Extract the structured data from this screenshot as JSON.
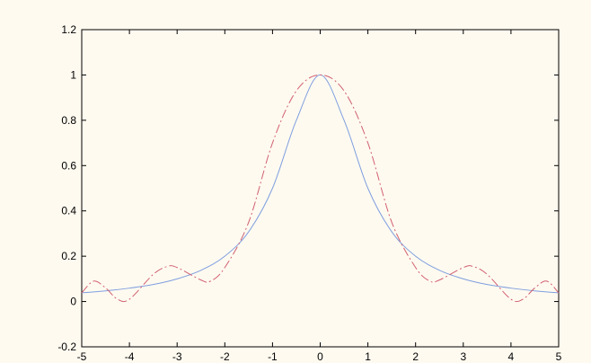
{
  "chart_data": {
    "type": "line",
    "title": "",
    "xlabel": "",
    "ylabel": "",
    "xlim": [
      -5,
      5
    ],
    "ylim": [
      -0.2,
      1.2
    ],
    "grid": false,
    "legend": "none",
    "x_ticks": [
      "-5",
      "-4",
      "-3",
      "-2",
      "-1",
      "0",
      "1",
      "2",
      "3",
      "4",
      "5"
    ],
    "y_ticks": [
      "-0.2",
      "0",
      "0.2",
      "0.4",
      "0.6",
      "0.8",
      "1",
      "1.2"
    ],
    "series": [
      {
        "color": "#7f9fdf",
        "style": "solid",
        "x": [
          -5,
          -4.5,
          -4,
          -3.5,
          -3,
          -2.5,
          -2,
          -1.5,
          -1,
          -0.5,
          0,
          0.5,
          1,
          1.5,
          2,
          2.5,
          3,
          3.5,
          4,
          4.5,
          5
        ],
        "y": [
          0.038,
          0.047,
          0.059,
          0.075,
          0.1,
          0.138,
          0.2,
          0.308,
          0.5,
          0.8,
          1,
          0.8,
          0.5,
          0.308,
          0.2,
          0.138,
          0.1,
          0.075,
          0.059,
          0.047,
          0.038
        ]
      },
      {
        "color": "#d06070",
        "style": "dashdot",
        "x": [
          -5,
          -4.75,
          -4.5,
          -4.25,
          -4,
          -3.5,
          -3.2,
          -3,
          -2.5,
          -2.3,
          -2,
          -1.5,
          -1,
          -0.5,
          0,
          0.5,
          1,
          1.5,
          2,
          2.3,
          2.5,
          3,
          3.2,
          3.5,
          4,
          4.25,
          4.5,
          4.75,
          5
        ],
        "y": [
          0.038,
          0.09,
          0.06,
          0.01,
          0.01,
          0.12,
          0.155,
          0.15,
          0.095,
          0.09,
          0.15,
          0.35,
          0.7,
          0.93,
          1,
          0.93,
          0.7,
          0.35,
          0.15,
          0.09,
          0.095,
          0.15,
          0.155,
          0.12,
          0.01,
          0.01,
          0.06,
          0.09,
          0.038
        ]
      }
    ]
  }
}
